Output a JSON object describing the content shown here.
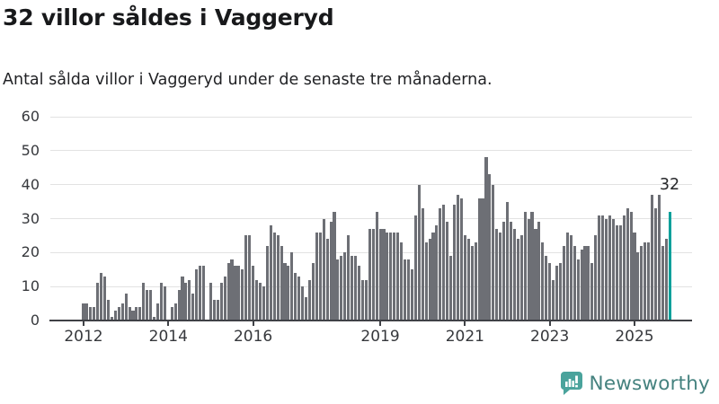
{
  "header": {
    "title": "32 villor såldes i Vaggeryd",
    "subtitle": "Antal sålda villor i Vaggeryd under de senaste tre månaderna."
  },
  "chart_data": {
    "type": "bar",
    "title": "32 villor såldes i Vaggeryd",
    "subtitle": "Antal sålda villor i Vaggeryd under de senaste tre månaderna.",
    "x_unit": "month",
    "x_start_year": 2012,
    "x_tick_labels": [
      "2012",
      "2014",
      "2016",
      "2019",
      "2021",
      "2023",
      "2025"
    ],
    "y_ticks": [
      0,
      10,
      20,
      30,
      40,
      50,
      60
    ],
    "ylim": [
      0,
      60
    ],
    "grid": "horizontal",
    "bar_color": "#6d6f75",
    "values": [
      5,
      5,
      4,
      4,
      11,
      14,
      13,
      6,
      1,
      3,
      4,
      5,
      8,
      4,
      3,
      4,
      4,
      11,
      9,
      9,
      1,
      5,
      11,
      10,
      0,
      4,
      5,
      9,
      13,
      11,
      12,
      8,
      15,
      16,
      16,
      0,
      11,
      6,
      6,
      11,
      13,
      17,
      18,
      16,
      16,
      15,
      25,
      25,
      16,
      12,
      11,
      10,
      22,
      28,
      26,
      25,
      22,
      17,
      16,
      20,
      14,
      13,
      10,
      7,
      12,
      17,
      26,
      26,
      30,
      24,
      29,
      32,
      18,
      19,
      20,
      25,
      19,
      19,
      16,
      12,
      12,
      27,
      27,
      32,
      27,
      27,
      26,
      26,
      26,
      26,
      23,
      18,
      18,
      15,
      31,
      40,
      33,
      23,
      24,
      26,
      28,
      33,
      34,
      29,
      19,
      34,
      37,
      36,
      25,
      24,
      22,
      23,
      36,
      36,
      48,
      43,
      40,
      27,
      26,
      29,
      35,
      29,
      27,
      24,
      25,
      32,
      30,
      32,
      27,
      29,
      23,
      19,
      17,
      12,
      16,
      17,
      22,
      26,
      25,
      22,
      18,
      21,
      22,
      22,
      17,
      25,
      31,
      31,
      30,
      31,
      30,
      28,
      28,
      31,
      33,
      32,
      26,
      20,
      22,
      23,
      23,
      37,
      33,
      37,
      22,
      24,
      32
    ],
    "highlight": {
      "index": 166,
      "value": 32,
      "label": "32",
      "color": "#00a09b"
    }
  },
  "footer": {
    "brand": "Newsworthy",
    "logo_icon": "bar-chart-speech-bubble-icon",
    "logo_color": "#4aa39c"
  }
}
